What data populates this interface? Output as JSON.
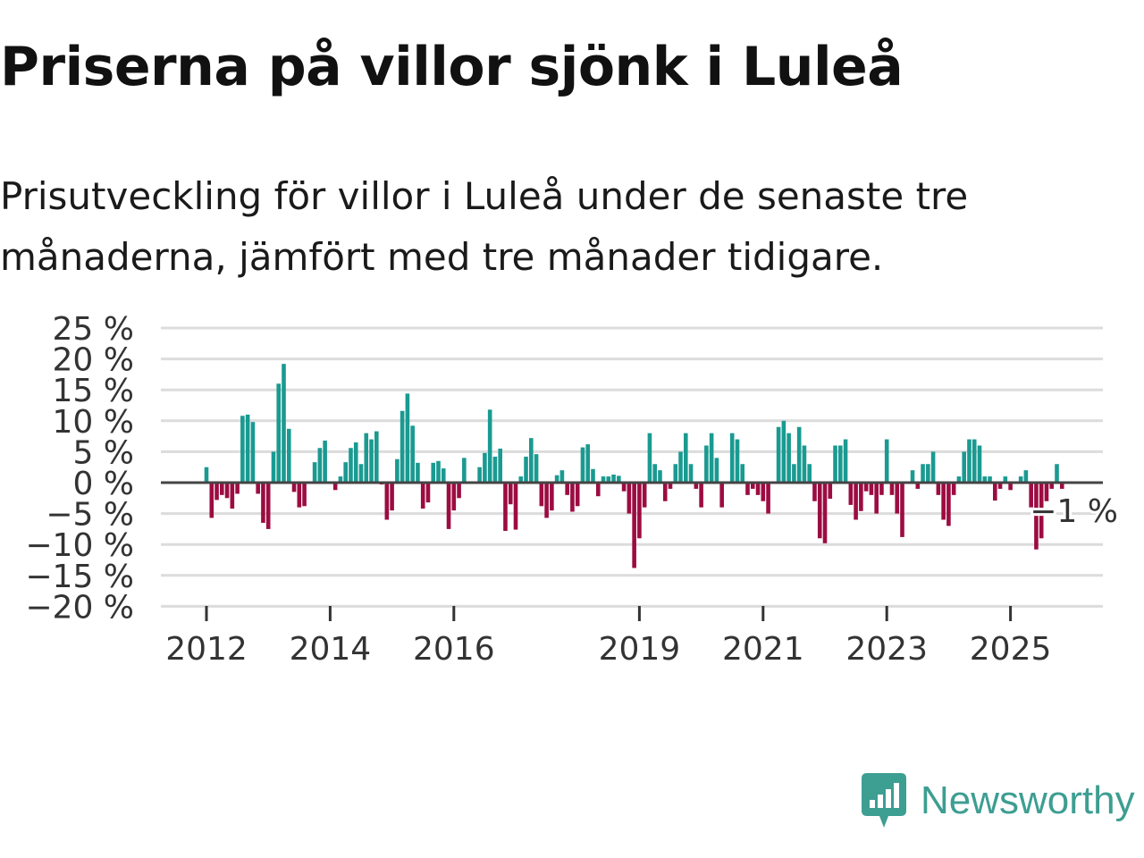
{
  "title": "Priserna på villor sjönk i Luleå",
  "subtitle": "Prisutveckling för villor i Luleå under de senaste tre månaderna, jämfört med tre månader tidigare.",
  "brand": "Newsworthy",
  "colors": {
    "positive": "#1a9a91",
    "negative": "#9c0c41",
    "grid": "#dcdcdc",
    "zero": "#444444",
    "brand": "#3d9e92"
  },
  "chart_data": {
    "type": "bar",
    "title": "Priserna på villor sjönk i Luleå",
    "xlabel": "",
    "ylabel": "",
    "ylim": [
      -20,
      25
    ],
    "yticks": [
      25,
      20,
      15,
      10,
      5,
      0,
      -5,
      -10,
      -15,
      -20
    ],
    "ytick_labels": [
      "25 %",
      "20 %",
      "15 %",
      "10 %",
      "5 %",
      "0 %",
      "−5 %",
      "−10 %",
      "−15 %",
      "−20 %"
    ],
    "xticks": [
      2012,
      2014,
      2016,
      2019,
      2021,
      2023,
      2025
    ],
    "xtick_labels": [
      "2012",
      "2014",
      "2016",
      "2019",
      "2021",
      "2023",
      "2025"
    ],
    "start": "2012-01",
    "frequency": "monthly",
    "annotation": "−1 %",
    "values": [
      2.5,
      -5.7,
      -2.8,
      -2.0,
      -2.5,
      -4.2,
      -1.8,
      10.8,
      11.0,
      9.8,
      -1.8,
      -6.5,
      -7.5,
      5.0,
      16.0,
      19.2,
      8.7,
      -1.5,
      -4.0,
      -3.8,
      0.0,
      3.3,
      5.6,
      6.8,
      0.0,
      -1.2,
      1.0,
      3.3,
      5.6,
      6.5,
      3.0,
      8.0,
      7.0,
      8.3,
      -0.3,
      -6.0,
      -4.5,
      3.8,
      11.6,
      14.4,
      9.2,
      3.2,
      -4.2,
      -3.2,
      3.2,
      3.5,
      2.3,
      -7.5,
      -4.5,
      -2.5,
      4.0,
      0.0,
      0.0,
      2.5,
      4.8,
      11.8,
      4.2,
      5.5,
      -7.8,
      -3.5,
      -7.6,
      1.0,
      4.2,
      7.2,
      4.6,
      -3.8,
      -5.7,
      -4.5,
      1.2,
      2.0,
      -2.0,
      -4.7,
      -3.8,
      5.7,
      6.2,
      2.2,
      -2.2,
      1.0,
      1.0,
      1.3,
      1.1,
      -1.4,
      -5.0,
      -13.8,
      -9.0,
      -4.0,
      8.0,
      3.0,
      2.0,
      -3.0,
      -1.0,
      3.0,
      5.0,
      8.0,
      3.0,
      -1.0,
      -4.0,
      6.0,
      8.0,
      4.0,
      -4.0,
      0.0,
      8.0,
      7.0,
      3.0,
      -2.0,
      -1.0,
      -2.0,
      -3.0,
      -5.0,
      0.0,
      9.0,
      10.0,
      8.0,
      3.0,
      9.0,
      6.0,
      3.0,
      -3.0,
      -9.0,
      -9.8,
      -2.6,
      6.0,
      6.0,
      7.0,
      -3.6,
      -6.0,
      -4.6,
      -1.4,
      -2.0,
      -5.0,
      -2.0,
      7.0,
      -2.0,
      -5.0,
      -8.8,
      0.0,
      2.0,
      -1.0,
      3.0,
      3.0,
      5.0,
      -2.0,
      -6.0,
      -7.0,
      -2.0,
      1.0,
      5.0,
      7.0,
      7.0,
      6.0,
      1.0,
      1.0,
      -2.9,
      -1.0,
      1.0,
      -1.2,
      0.0,
      1.0,
      2.0,
      -4.0,
      -10.8,
      -9.0,
      -3.0,
      -1.0,
      3.0,
      -1.0
    ]
  }
}
